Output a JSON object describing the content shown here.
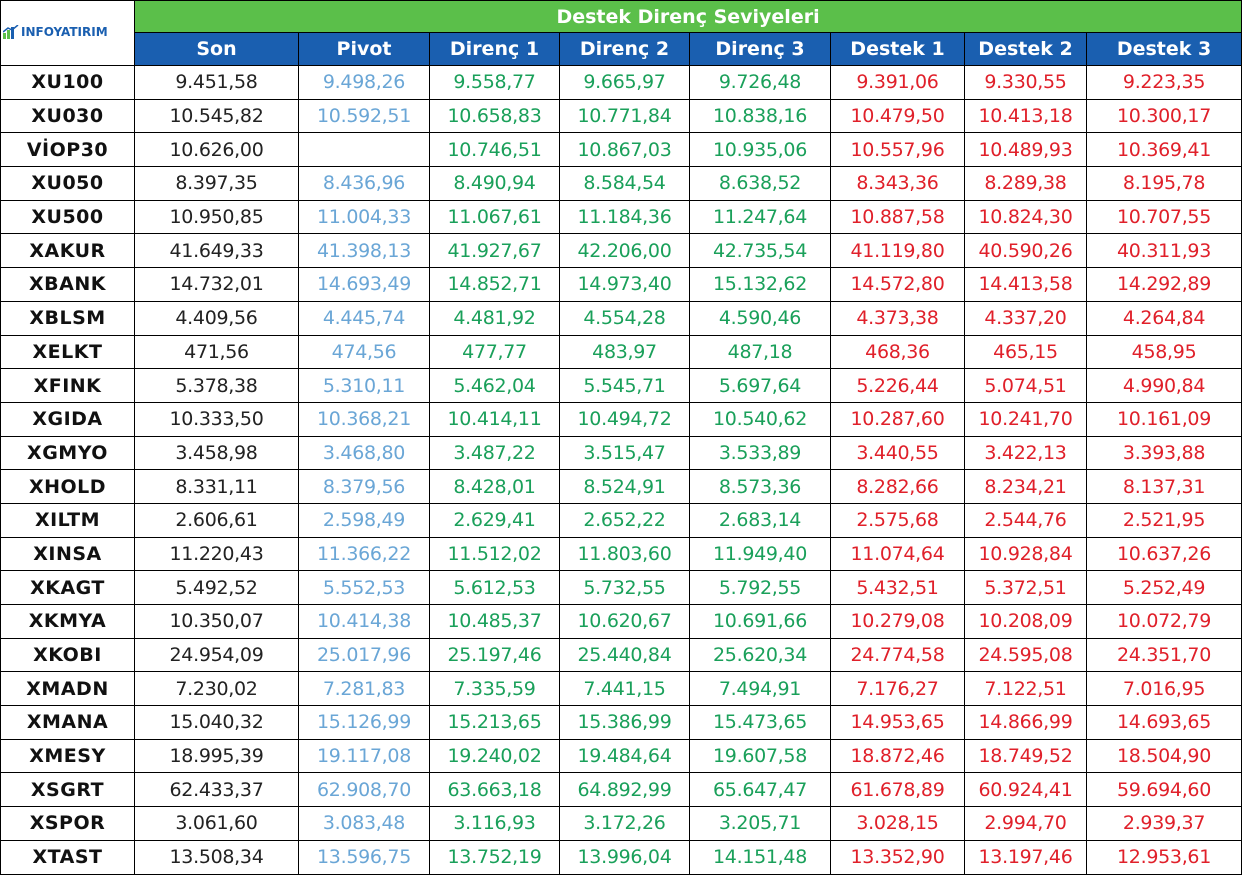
{
  "brand": {
    "logo_text": "INFOYATIRIM",
    "colors": {
      "green": "#5bbf4a",
      "blue": "#1a5fb0",
      "pivot": "#6aa6d6",
      "direnc": "#1aa05a",
      "destek": "#e0202a"
    }
  },
  "title": "Destek Direnç Seviyeleri",
  "columns": [
    "Son",
    "Pivot",
    "Direnç 1",
    "Direnç 2",
    "Direnç 3",
    "Destek 1",
    "Destek 2",
    "Destek 3"
  ],
  "rows": [
    {
      "symbol": "XU100",
      "values": [
        "9.451,58",
        "9.498,26",
        "9.558,77",
        "9.665,97",
        "9.726,48",
        "9.391,06",
        "9.330,55",
        "9.223,35"
      ]
    },
    {
      "symbol": "XU030",
      "values": [
        "10.545,82",
        "10.592,51",
        "10.658,83",
        "10.771,84",
        "10.838,16",
        "10.479,50",
        "10.413,18",
        "10.300,17"
      ]
    },
    {
      "symbol": "VİOP30",
      "values": [
        "10.626,00",
        "",
        "10.746,51",
        "10.867,03",
        "10.935,06",
        "10.557,96",
        "10.489,93",
        "10.369,41"
      ]
    },
    {
      "symbol": "XU050",
      "values": [
        "8.397,35",
        "8.436,96",
        "8.490,94",
        "8.584,54",
        "8.638,52",
        "8.343,36",
        "8.289,38",
        "8.195,78"
      ]
    },
    {
      "symbol": "XU500",
      "values": [
        "10.950,85",
        "11.004,33",
        "11.067,61",
        "11.184,36",
        "11.247,64",
        "10.887,58",
        "10.824,30",
        "10.707,55"
      ]
    },
    {
      "symbol": "XAKUR",
      "values": [
        "41.649,33",
        "41.398,13",
        "41.927,67",
        "42.206,00",
        "42.735,54",
        "41.119,80",
        "40.590,26",
        "40.311,93"
      ]
    },
    {
      "symbol": "XBANK",
      "values": [
        "14.732,01",
        "14.693,49",
        "14.852,71",
        "14.973,40",
        "15.132,62",
        "14.572,80",
        "14.413,58",
        "14.292,89"
      ]
    },
    {
      "symbol": "XBLSM",
      "values": [
        "4.409,56",
        "4.445,74",
        "4.481,92",
        "4.554,28",
        "4.590,46",
        "4.373,38",
        "4.337,20",
        "4.264,84"
      ]
    },
    {
      "symbol": "XELKT",
      "values": [
        "471,56",
        "474,56",
        "477,77",
        "483,97",
        "487,18",
        "468,36",
        "465,15",
        "458,95"
      ]
    },
    {
      "symbol": "XFINK",
      "values": [
        "5.378,38",
        "5.310,11",
        "5.462,04",
        "5.545,71",
        "5.697,64",
        "5.226,44",
        "5.074,51",
        "4.990,84"
      ]
    },
    {
      "symbol": "XGIDA",
      "values": [
        "10.333,50",
        "10.368,21",
        "10.414,11",
        "10.494,72",
        "10.540,62",
        "10.287,60",
        "10.241,70",
        "10.161,09"
      ]
    },
    {
      "symbol": "XGMYO",
      "values": [
        "3.458,98",
        "3.468,80",
        "3.487,22",
        "3.515,47",
        "3.533,89",
        "3.440,55",
        "3.422,13",
        "3.393,88"
      ]
    },
    {
      "symbol": "XHOLD",
      "values": [
        "8.331,11",
        "8.379,56",
        "8.428,01",
        "8.524,91",
        "8.573,36",
        "8.282,66",
        "8.234,21",
        "8.137,31"
      ]
    },
    {
      "symbol": "XILTM",
      "values": [
        "2.606,61",
        "2.598,49",
        "2.629,41",
        "2.652,22",
        "2.683,14",
        "2.575,68",
        "2.544,76",
        "2.521,95"
      ]
    },
    {
      "symbol": "XINSA",
      "values": [
        "11.220,43",
        "11.366,22",
        "11.512,02",
        "11.803,60",
        "11.949,40",
        "11.074,64",
        "10.928,84",
        "10.637,26"
      ]
    },
    {
      "symbol": "XKAGT",
      "values": [
        "5.492,52",
        "5.552,53",
        "5.612,53",
        "5.732,55",
        "5.792,55",
        "5.432,51",
        "5.372,51",
        "5.252,49"
      ]
    },
    {
      "symbol": "XKMYA",
      "values": [
        "10.350,07",
        "10.414,38",
        "10.485,37",
        "10.620,67",
        "10.691,66",
        "10.279,08",
        "10.208,09",
        "10.072,79"
      ]
    },
    {
      "symbol": "XKOBI",
      "values": [
        "24.954,09",
        "25.017,96",
        "25.197,46",
        "25.440,84",
        "25.620,34",
        "24.774,58",
        "24.595,08",
        "24.351,70"
      ]
    },
    {
      "symbol": "XMADN",
      "values": [
        "7.230,02",
        "7.281,83",
        "7.335,59",
        "7.441,15",
        "7.494,91",
        "7.176,27",
        "7.122,51",
        "7.016,95"
      ]
    },
    {
      "symbol": "XMANA",
      "values": [
        "15.040,32",
        "15.126,99",
        "15.213,65",
        "15.386,99",
        "15.473,65",
        "14.953,65",
        "14.866,99",
        "14.693,65"
      ]
    },
    {
      "symbol": "XMESY",
      "values": [
        "18.995,39",
        "19.117,08",
        "19.240,02",
        "19.484,64",
        "19.607,58",
        "18.872,46",
        "18.749,52",
        "18.504,90"
      ]
    },
    {
      "symbol": "XSGRT",
      "values": [
        "62.433,37",
        "62.908,70",
        "63.663,18",
        "64.892,99",
        "65.647,47",
        "61.678,89",
        "60.924,41",
        "59.694,60"
      ]
    },
    {
      "symbol": "XSPOR",
      "values": [
        "3.061,60",
        "3.083,48",
        "3.116,93",
        "3.172,26",
        "3.205,71",
        "3.028,15",
        "2.994,70",
        "2.939,37"
      ]
    },
    {
      "symbol": "XTAST",
      "values": [
        "13.508,34",
        "13.596,75",
        "13.752,19",
        "13.996,04",
        "14.151,48",
        "13.352,90",
        "13.197,46",
        "12.953,61"
      ]
    }
  ]
}
